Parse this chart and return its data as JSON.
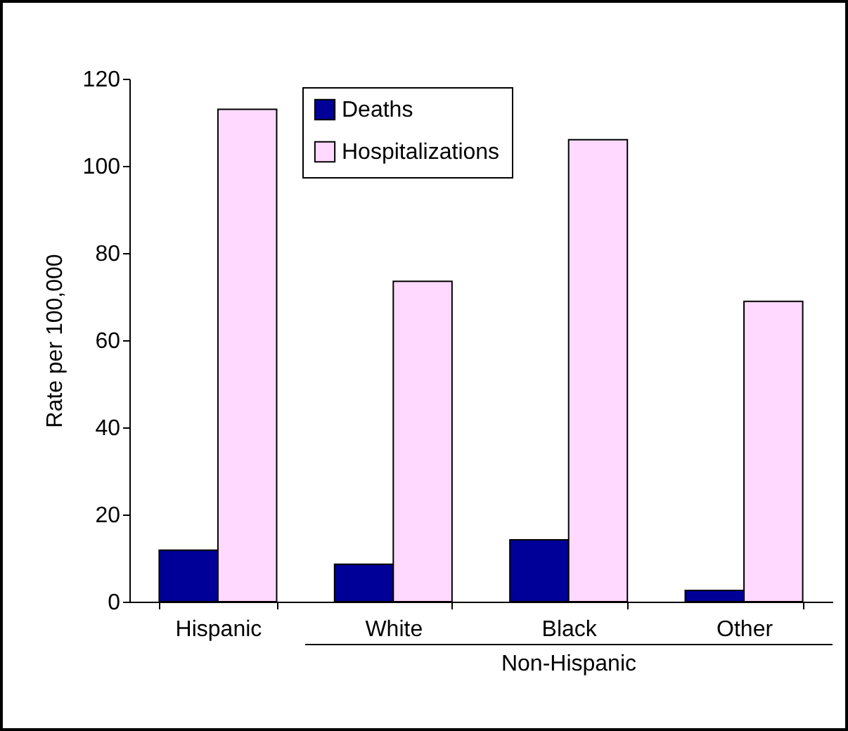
{
  "chart_data": {
    "type": "bar",
    "ylabel": "Rate per 100,000",
    "categories": [
      "Hispanic",
      "White",
      "Black",
      "Other"
    ],
    "series": [
      {
        "name": "Deaths",
        "color": "#000099",
        "values": [
          11.8,
          8.6,
          14.2,
          2.6
        ]
      },
      {
        "name": "Hospitalizations",
        "color": "#ffd9ff",
        "values": [
          113,
          73.5,
          106,
          68.9
        ]
      }
    ],
    "ylim": [
      0,
      120
    ],
    "yticks": [
      0,
      20,
      40,
      60,
      80,
      100,
      120
    ],
    "grid": false,
    "legend": "top",
    "annotations": [
      "Non-Hispanic"
    ]
  }
}
